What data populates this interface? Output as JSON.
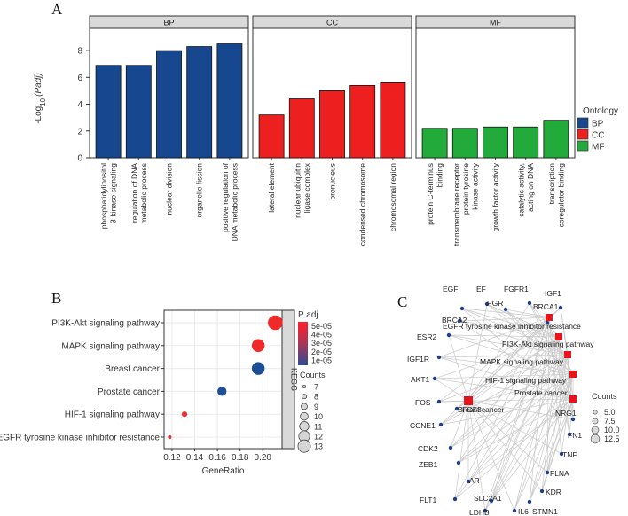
{
  "panels": {
    "a": "A",
    "b": "B",
    "c": "C"
  },
  "chart_data": [
    {
      "panel": "A",
      "type": "bar",
      "ylabel_prefix": "-Log",
      "ylabel_sub": "10",
      "ylabel_var": "(Padj)",
      "ylim": [
        0,
        9
      ],
      "yticks": [
        0,
        2,
        4,
        6,
        8
      ],
      "grid": false,
      "facets": [
        {
          "name": "BP",
          "color": "#17478f",
          "categories": [
            "phosphatidylinositol 3-kinase signaling",
            "regulation of DNA metabolic process",
            "nuclear division",
            "organelle fission",
            "positive regulation of DNA metabolic process"
          ],
          "values": [
            6.9,
            6.9,
            8.0,
            8.3,
            8.5
          ]
        },
        {
          "name": "CC",
          "color": "#ee1f1f",
          "categories": [
            "lateral element",
            "nuclear ubiquitin ligase complex",
            "pronucleus",
            "condensed chromosome",
            "chromosomal region"
          ],
          "values": [
            3.2,
            4.4,
            5.0,
            5.4,
            5.6
          ]
        },
        {
          "name": "MF",
          "color": "#22aa3a",
          "categories": [
            "protein C-terminus binding",
            "transmembrane receptor protein tyrosine kinase activity",
            "growth factor activity",
            "catalytic activity, acting on DNA",
            "transcription coregulator binding"
          ],
          "values": [
            2.2,
            2.2,
            2.3,
            2.3,
            2.8
          ]
        }
      ],
      "legend": {
        "title": "Ontology",
        "placement": "right",
        "entries": [
          {
            "label": "BP",
            "color": "#17478f"
          },
          {
            "label": "CC",
            "color": "#ee1f1f"
          },
          {
            "label": "MF",
            "color": "#22aa3a"
          }
        ]
      }
    },
    {
      "panel": "B",
      "type": "scatter",
      "xlabel": "GeneRatio",
      "xlim": [
        0.113,
        0.217
      ],
      "xticks": [
        0.12,
        0.14,
        0.16,
        0.18,
        0.2
      ],
      "xtick_labels": [
        "0.12",
        "0.14",
        "0.16",
        "0.18",
        "0.20"
      ],
      "strip": "KEGG",
      "categories": [
        "PI3K-Akt signaling pathway",
        "MAPK signaling pathway",
        "Breast cancer",
        "Prostate cancer",
        "HIF-1 signaling pathway",
        "EGFR tyrosine kinase inhibitor resistance"
      ],
      "points": [
        {
          "category": "PI3K-Akt signaling pathway",
          "x": 0.211,
          "count": 13,
          "color": "#ee2a2a"
        },
        {
          "category": "MAPK signaling pathway",
          "x": 0.196,
          "count": 12,
          "color": "#ee2a2a"
        },
        {
          "category": "Breast cancer",
          "x": 0.196,
          "count": 12,
          "color": "#1e4f93"
        },
        {
          "category": "Prostate cancer",
          "x": 0.164,
          "count": 10,
          "color": "#1e4f93"
        },
        {
          "category": "HIF-1 signaling pathway",
          "x": 0.131,
          "count": 8,
          "color": "#ee2a2a"
        },
        {
          "category": "EGFR tyrosine kinase inhibitor resistance",
          "x": 0.118,
          "count": 7,
          "color": "#ee2a2a"
        }
      ],
      "color_legend": {
        "title": "P adj",
        "labels": [
          "5e-05",
          "4e-05",
          "3e-05",
          "2e-05",
          "1e-05"
        ],
        "colors": [
          "#ff1f2a",
          "#d8283d",
          "#a83658",
          "#6a3f78",
          "#2e4b96"
        ]
      },
      "size_legend": {
        "title": "Counts",
        "labels": [
          "7",
          "8",
          "9",
          "10",
          "11",
          "12",
          "13"
        ]
      }
    },
    {
      "panel": "C",
      "type": "network",
      "pathways": [
        "EGFR tyrosine kinase inhibitor resistance",
        "PI3K-Akt signaling pathway",
        "MAPK signaling pathway",
        "HIF-1 signaling pathway",
        "Prostate cancer",
        "Breast cancer"
      ],
      "genes": [
        "EGF",
        "EF",
        "PGR",
        "FGFR1",
        "IGF1",
        "BRCA1",
        "BRCA2",
        "ESR2",
        "IGF1R",
        "AKT1",
        "FOS",
        "FGF3",
        "CCNE1",
        "CDK2",
        "ZEB1",
        "AR",
        "FLT1",
        "LDHB",
        "SLC2A1",
        "IL6",
        "STMN1",
        "KDR",
        "FLNA",
        "TNF",
        "FN1",
        "NRG1"
      ],
      "size_legend": {
        "title": "Counts",
        "labels": [
          "5.0",
          "7.5",
          "10.0",
          "12.5"
        ]
      },
      "pathway_color": "#e8141c",
      "gene_color": "#1e3f8c",
      "edge_color": "#c9c9c9"
    }
  ]
}
